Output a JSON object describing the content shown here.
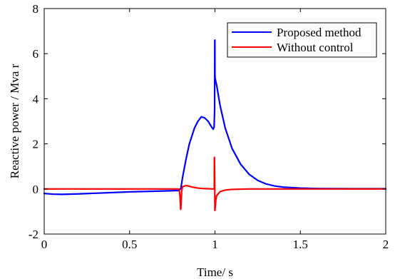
{
  "chart_data": {
    "type": "line",
    "xlabel": "Time/ s",
    "ylabel": "Reactive power / Mva r",
    "xlim": [
      0,
      2
    ],
    "ylim": [
      -2,
      8
    ],
    "x_ticks": [
      "0",
      "0.5",
      "1",
      "1.5",
      "2"
    ],
    "y_ticks": [
      "-2",
      "0",
      "2",
      "4",
      "6",
      "8"
    ],
    "grid": false,
    "legend_position": "top-right",
    "series": [
      {
        "name": "Proposed method",
        "color": "#0000ff",
        "x": [
          0,
          0.05,
          0.1,
          0.2,
          0.3,
          0.4,
          0.5,
          0.6,
          0.7,
          0.79,
          0.8,
          0.81,
          0.83,
          0.85,
          0.88,
          0.9,
          0.92,
          0.94,
          0.96,
          0.98,
          0.99,
          0.995,
          0.998,
          0.999,
          0.9995,
          1.0,
          1.001,
          1.01,
          1.03,
          1.06,
          1.1,
          1.15,
          1.2,
          1.25,
          1.3,
          1.35,
          1.4,
          1.5,
          1.6,
          1.8,
          2.0
        ],
        "y": [
          -0.2,
          -0.23,
          -0.24,
          -0.22,
          -0.19,
          -0.16,
          -0.13,
          -0.11,
          -0.09,
          -0.07,
          0.02,
          0.5,
          1.3,
          2.0,
          2.7,
          3.0,
          3.2,
          3.15,
          3.0,
          2.75,
          2.65,
          2.75,
          3.5,
          6.6,
          6.6,
          5.0,
          4.9,
          4.6,
          3.7,
          2.7,
          1.8,
          1.1,
          0.65,
          0.38,
          0.22,
          0.13,
          0.08,
          0.04,
          0.02,
          0.01,
          0.01
        ]
      },
      {
        "name": "Without control",
        "color": "#ff0000",
        "x": [
          0,
          0.2,
          0.4,
          0.6,
          0.79,
          0.795,
          0.799,
          0.8,
          0.805,
          0.81,
          0.83,
          0.85,
          0.87,
          0.9,
          0.93,
          0.96,
          0.99,
          0.995,
          0.996,
          0.9965,
          0.997,
          0.999,
          0.9995,
          1.0,
          1.005,
          1.01,
          1.03,
          1.06,
          1.1,
          1.2,
          1.4,
          1.6,
          1.8,
          2.0
        ],
        "y": [
          0.0,
          0.0,
          0.0,
          0.0,
          0.0,
          -0.3,
          -0.9,
          -0.9,
          -0.1,
          0.1,
          0.15,
          0.12,
          0.08,
          0.04,
          0.02,
          0.01,
          0.0,
          0.02,
          0.0,
          1.4,
          1.4,
          0.0,
          -0.95,
          -0.95,
          -0.5,
          -0.3,
          -0.12,
          -0.05,
          -0.02,
          0.0,
          0.0,
          0.0,
          0.0,
          0.0
        ]
      }
    ]
  }
}
